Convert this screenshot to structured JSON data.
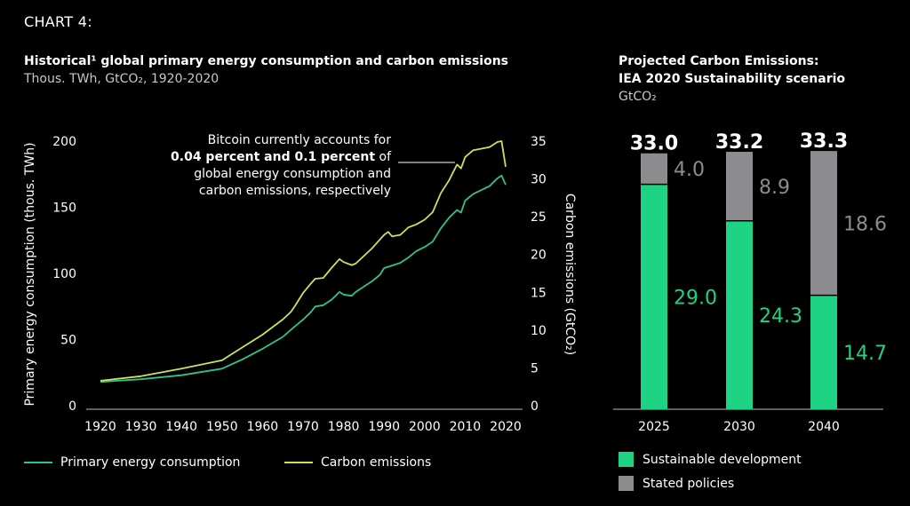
{
  "header": {
    "label": "CHART 4:"
  },
  "left_chart_titles": {
    "title": "Historical¹ global primary energy consumption and carbon emissions",
    "subtitle": "Thous. TWh, GtCO₂, 1920-2020"
  },
  "right_chart_titles": {
    "title_line1": "Projected Carbon Emissions:",
    "title_line2": "IEA 2020 Sustainability scenario",
    "subtitle": "GtCO₂"
  },
  "annotation": {
    "line1": "Bitcoin currently accounts for",
    "bold": "0.04 percent and 0.1 percent",
    "line2_tail": " of",
    "line3": "global energy consumption and",
    "line4": "carbon emissions, respectively"
  },
  "colors": {
    "energy": "#2fc48a",
    "carbon": "#c9e35a",
    "sustainable": "#1ed383",
    "stated": "#8c8c8e",
    "background": "#000000"
  },
  "chart_data": [
    {
      "type": "line",
      "title": "Historical¹ global primary energy consumption and carbon emissions",
      "xlabel": "",
      "ylabel": "Primary energy consumption (thous. TWh)",
      "y2label": "Carbon emissions (GtCO₂)",
      "xlim": [
        1920,
        2020
      ],
      "ylim": [
        0,
        200
      ],
      "y2lim": [
        0,
        35
      ],
      "x_ticks": [
        "1920",
        "1930",
        "1940",
        "1950",
        "1960",
        "1970",
        "1980",
        "1990",
        "2000",
        "2010",
        "2020"
      ],
      "y_ticks": [
        "0",
        "50",
        "100",
        "150",
        "200"
      ],
      "y2_ticks": [
        "0",
        "5",
        "10",
        "15",
        "20",
        "25",
        "30",
        "35"
      ],
      "series": [
        {
          "name": "Primary energy consumption",
          "axis": "left",
          "points": [
            [
              1920,
              18
            ],
            [
              1930,
              20
            ],
            [
              1940,
              23
            ],
            [
              1950,
              28
            ],
            [
              1955,
              35
            ],
            [
              1960,
              43
            ],
            [
              1965,
              52
            ],
            [
              1968,
              60
            ],
            [
              1970,
              65
            ],
            [
              1972,
              71
            ],
            [
              1973,
              75
            ],
            [
              1975,
              76
            ],
            [
              1977,
              80
            ],
            [
              1979,
              86
            ],
            [
              1980,
              84
            ],
            [
              1982,
              83
            ],
            [
              1983,
              86
            ],
            [
              1985,
              90
            ],
            [
              1987,
              94
            ],
            [
              1989,
              99
            ],
            [
              1990,
              104
            ],
            [
              1992,
              106
            ],
            [
              1994,
              108
            ],
            [
              1996,
              112
            ],
            [
              1998,
              117
            ],
            [
              2000,
              120
            ],
            [
              2002,
              124
            ],
            [
              2004,
              134
            ],
            [
              2006,
              142
            ],
            [
              2008,
              148
            ],
            [
              2009,
              146
            ],
            [
              2010,
              155
            ],
            [
              2012,
              160
            ],
            [
              2014,
              163
            ],
            [
              2016,
              166
            ],
            [
              2018,
              172
            ],
            [
              2019,
              174
            ],
            [
              2020,
              167
            ]
          ]
        },
        {
          "name": "Carbon emissions",
          "axis": "right",
          "points": [
            [
              1920,
              3.3
            ],
            [
              1930,
              3.9
            ],
            [
              1940,
              4.9
            ],
            [
              1950,
              6.0
            ],
            [
              1955,
              7.7
            ],
            [
              1960,
              9.4
            ],
            [
              1965,
              11.4
            ],
            [
              1967,
              12.4
            ],
            [
              1968,
              13.2
            ],
            [
              1970,
              14.9
            ],
            [
              1972,
              16.2
            ],
            [
              1973,
              16.8
            ],
            [
              1975,
              16.9
            ],
            [
              1977,
              18.2
            ],
            [
              1979,
              19.4
            ],
            [
              1980,
              19.0
            ],
            [
              1982,
              18.6
            ],
            [
              1983,
              18.8
            ],
            [
              1985,
              19.8
            ],
            [
              1987,
              20.8
            ],
            [
              1989,
              22.0
            ],
            [
              1990,
              22.6
            ],
            [
              1991,
              23.0
            ],
            [
              1992,
              22.4
            ],
            [
              1994,
              22.6
            ],
            [
              1996,
              23.6
            ],
            [
              1998,
              24.0
            ],
            [
              2000,
              24.6
            ],
            [
              2002,
              25.6
            ],
            [
              2004,
              28.1
            ],
            [
              2006,
              29.8
            ],
            [
              2008,
              31.9
            ],
            [
              2009,
              31.4
            ],
            [
              2010,
              32.9
            ],
            [
              2012,
              33.8
            ],
            [
              2014,
              34.0
            ],
            [
              2016,
              34.2
            ],
            [
              2018,
              34.9
            ],
            [
              2019,
              35.0
            ],
            [
              2020,
              31.6
            ]
          ]
        }
      ]
    },
    {
      "type": "bar",
      "stacked": true,
      "title": "Projected Carbon Emissions: IEA 2020 Sustainability scenario",
      "ylabel": "GtCO₂",
      "categories": [
        "2025",
        "2030",
        "2040"
      ],
      "totals": [
        "33.0",
        "33.2",
        "33.3"
      ],
      "ylim": [
        0,
        34
      ],
      "series": [
        {
          "name": "Sustainable development",
          "values": [
            29.0,
            24.3,
            14.7
          ],
          "labels": [
            "29.0",
            "24.3",
            "14.7"
          ]
        },
        {
          "name": "Stated policies",
          "values": [
            4.0,
            8.9,
            18.6
          ],
          "labels": [
            "4.0",
            "8.9",
            "18.6"
          ]
        }
      ]
    }
  ]
}
